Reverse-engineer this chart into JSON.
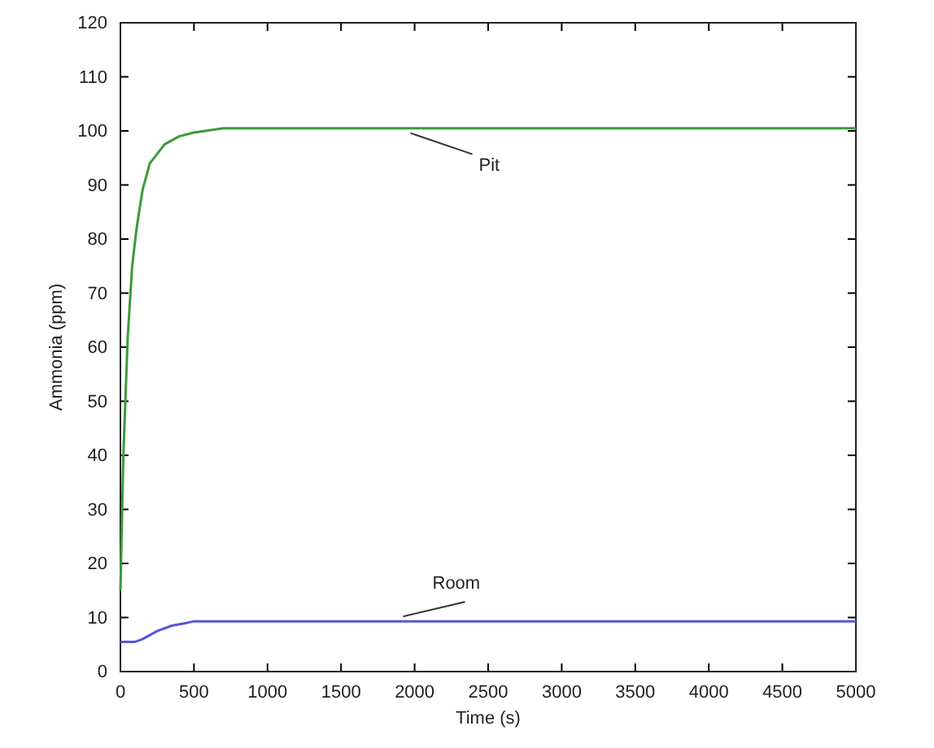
{
  "chart_data": {
    "type": "line",
    "xlabel": "Time (s)",
    "ylabel": "Ammonia (ppm)",
    "xlim": [
      0,
      5000
    ],
    "xticks": [
      0,
      500,
      1000,
      1500,
      2000,
      2500,
      3000,
      3500,
      4000,
      4500,
      5000
    ],
    "ylim": [
      0,
      120
    ],
    "yticks": [
      0,
      10,
      20,
      30,
      40,
      50,
      60,
      70,
      80,
      90,
      100,
      110,
      120
    ],
    "grid": false,
    "marker": "none",
    "line_style": "solid",
    "series": [
      {
        "color": "#3a9a3a",
        "x": [
          0,
          20,
          50,
          80,
          110,
          150,
          200,
          300,
          400,
          500,
          700,
          5000
        ],
        "values": [
          15,
          40,
          62,
          75,
          82,
          89,
          94,
          97.5,
          99,
          99.7,
          100.5,
          100.5
        ]
      },
      {
        "color": "#5555dd",
        "x": [
          0,
          100,
          150,
          250,
          350,
          450,
          500,
          5000
        ],
        "values": [
          5.5,
          5.5,
          6,
          7.5,
          8.5,
          9,
          9.3,
          9.3
        ]
      }
    ],
    "annotations": [
      {
        "text": "Pit",
        "x": 1950,
        "y": 100.5
      },
      {
        "text": "Room",
        "x": 1900,
        "y": 9.3
      }
    ]
  }
}
